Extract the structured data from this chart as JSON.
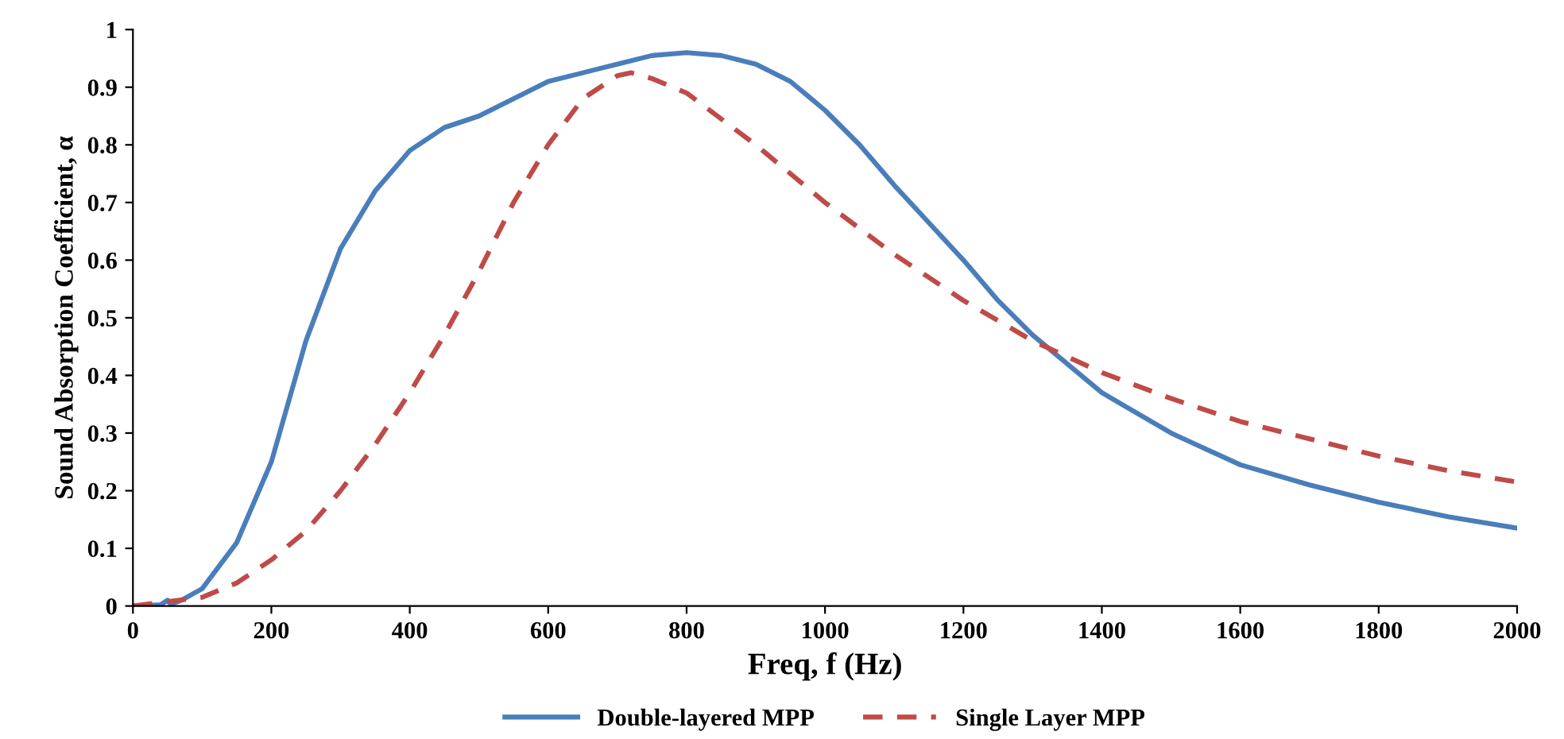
{
  "chart_data": {
    "type": "line",
    "xlabel": "Freq, f (Hz)",
    "ylabel": "Sound Absorption Coefficient, α",
    "xlim": [
      0,
      2000
    ],
    "ylim": [
      0,
      1
    ],
    "xticks": [
      0,
      200,
      400,
      600,
      800,
      1000,
      1200,
      1400,
      1600,
      1800,
      2000
    ],
    "yticks": [
      0,
      0.1,
      0.2,
      0.3,
      0.4,
      0.5,
      0.6,
      0.7,
      0.8,
      0.9,
      1
    ],
    "grid": false,
    "legend": "bottom",
    "marker": "none",
    "series": [
      {
        "name": "Double-layered MPP",
        "color": "#4a7ebb",
        "line_style": "solid",
        "x": [
          0,
          40,
          50,
          55,
          70,
          100,
          150,
          200,
          250,
          300,
          350,
          400,
          450,
          500,
          550,
          600,
          650,
          700,
          750,
          800,
          850,
          900,
          950,
          1000,
          1050,
          1100,
          1150,
          1200,
          1250,
          1300,
          1400,
          1500,
          1600,
          1700,
          1800,
          1900,
          2000
        ],
        "values": [
          0,
          0.002,
          0.01,
          0.003,
          0.01,
          0.03,
          0.11,
          0.25,
          0.46,
          0.62,
          0.72,
          0.79,
          0.83,
          0.85,
          0.88,
          0.91,
          0.925,
          0.94,
          0.955,
          0.96,
          0.955,
          0.94,
          0.91,
          0.86,
          0.8,
          0.73,
          0.665,
          0.6,
          0.53,
          0.47,
          0.37,
          0.3,
          0.245,
          0.21,
          0.18,
          0.155,
          0.135
        ]
      },
      {
        "name": "Single Layer MPP",
        "color": "#be4b48",
        "line_style": "dashed",
        "x": [
          0,
          100,
          150,
          200,
          250,
          300,
          350,
          400,
          450,
          500,
          550,
          600,
          650,
          700,
          720,
          750,
          800,
          900,
          1000,
          1100,
          1200,
          1300,
          1400,
          1500,
          1600,
          1700,
          1800,
          1900,
          2000
        ],
        "values": [
          0,
          0.015,
          0.04,
          0.08,
          0.13,
          0.2,
          0.28,
          0.37,
          0.47,
          0.58,
          0.7,
          0.8,
          0.88,
          0.92,
          0.925,
          0.915,
          0.89,
          0.8,
          0.7,
          0.61,
          0.53,
          0.46,
          0.405,
          0.36,
          0.32,
          0.29,
          0.26,
          0.235,
          0.215
        ]
      }
    ]
  }
}
